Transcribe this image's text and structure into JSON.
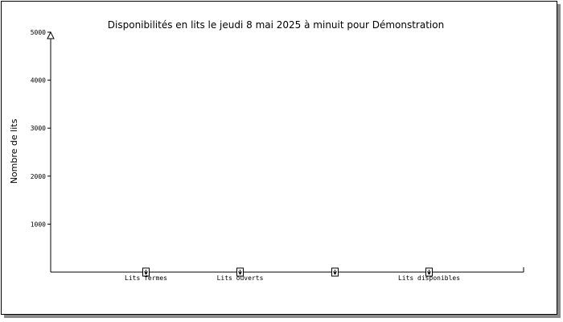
{
  "chart_data": {
    "type": "bar",
    "title": "Disponibilités en lits le jeudi  8 mai 2025 à minuit pour Démonstration",
    "xlabel": "",
    "ylabel": "Nombre de lits",
    "ylim": [
      0,
      5000
    ],
    "yticks": [
      1000,
      2000,
      3000,
      4000,
      5000
    ],
    "categories": [
      "Lits fermes",
      "Lits ouverts",
      "",
      "Lits disponibles"
    ],
    "values": [
      0,
      0,
      0,
      0
    ],
    "grid": false,
    "legend": "none",
    "colors": {
      "axis": "#000000",
      "marker": "#000000",
      "background": "#ffffff",
      "shadow": "#8a8a8a"
    }
  }
}
